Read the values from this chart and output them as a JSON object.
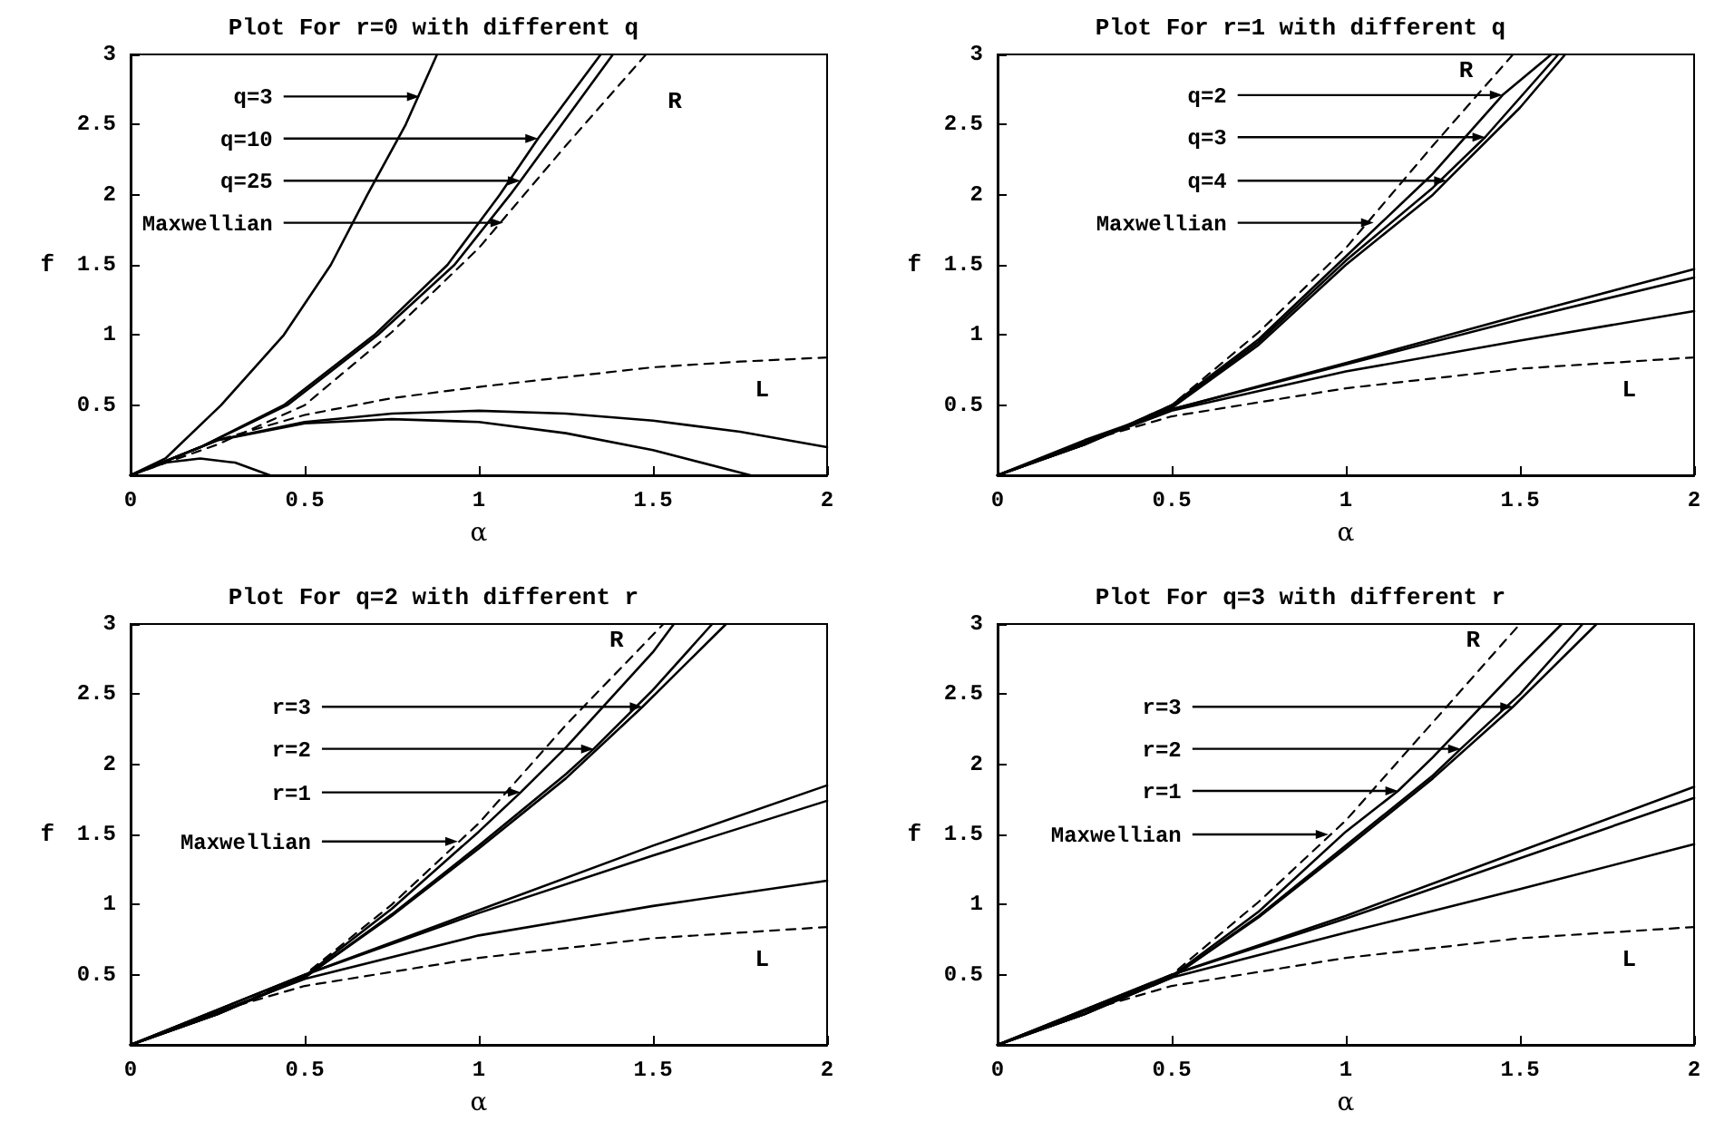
{
  "chart_data": [
    {
      "type": "line",
      "title": "Plot For r=0 with different q",
      "xlabel": "α",
      "ylabel": "f",
      "xlim": [
        0,
        2
      ],
      "xticks": [
        0,
        0.5,
        1,
        1.5,
        2
      ],
      "ylim": [
        0,
        3
      ],
      "yticks": [
        0.5,
        1,
        1.5,
        2,
        2.5,
        3
      ],
      "grid": false,
      "legend": false,
      "marker": "none",
      "line_style": "solid",
      "annotations": [
        {
          "text": "q=3",
          "x": 0.83,
          "y": 2.7
        },
        {
          "text": "q=10",
          "x": 1.17,
          "y": 2.4
        },
        {
          "text": "q=25",
          "x": 1.12,
          "y": 2.1
        },
        {
          "text": "Maxwellian",
          "x": 1.07,
          "y": 1.8
        }
      ],
      "series": [
        {
          "color": "#000000",
          "x": [
            0,
            0.1,
            0.26,
            0.44,
            0.575,
            0.68,
            0.79,
            0.88
          ],
          "values": [
            0,
            0.12,
            0.5,
            1,
            1.5,
            2,
            2.5,
            3
          ]
        },
        {
          "color": "#000000",
          "x": [
            0,
            0.2,
            0.44,
            0.7,
            0.91,
            1.06,
            1.17,
            1.35
          ],
          "values": [
            0,
            0.2,
            0.5,
            1,
            1.5,
            2,
            2.4,
            3
          ]
        },
        {
          "color": "#000000",
          "x": [
            0,
            0.2,
            0.45,
            0.71,
            0.93,
            1.09,
            1.12,
            1.385
          ],
          "values": [
            0,
            0.2,
            0.5,
            1,
            1.5,
            2,
            2.1,
            3
          ]
        },
        {
          "name": "R",
          "color": "#000000",
          "line_style": "dashed",
          "x": [
            0,
            0.25,
            0.5,
            0.75,
            1,
            1.25,
            1.48
          ],
          "values": [
            0,
            0.22,
            0.5,
            1.02,
            1.62,
            2.35,
            3
          ]
        },
        {
          "name": "L",
          "color": "#000000",
          "line_style": "dashed",
          "x": [
            0,
            0.25,
            0.5,
            0.75,
            1,
            1.25,
            1.5,
            1.75,
            2
          ],
          "values": [
            0,
            0.25,
            0.43,
            0.55,
            0.63,
            0.7,
            0.77,
            0.81,
            0.84
          ]
        },
        {
          "color": "#000000",
          "x": [
            0,
            0.25,
            0.5,
            0.75,
            1,
            1.25,
            1.5,
            1.75,
            2
          ],
          "values": [
            0,
            0.25,
            0.38,
            0.44,
            0.46,
            0.44,
            0.39,
            0.31,
            0.2
          ]
        },
        {
          "color": "#000000",
          "x": [
            0,
            0.25,
            0.5,
            0.75,
            1,
            1.25,
            1.5,
            1.78
          ],
          "values": [
            0,
            0.25,
            0.37,
            0.4,
            0.38,
            0.3,
            0.18,
            0
          ]
        },
        {
          "color": "#000000",
          "x": [
            0,
            0.1,
            0.2,
            0.3,
            0.4
          ],
          "values": [
            0,
            0.09,
            0.12,
            0.09,
            0
          ]
        }
      ]
    },
    {
      "type": "line",
      "title": "Plot For r=1 with different q",
      "xlabel": "α",
      "ylabel": "f",
      "xlim": [
        0,
        2
      ],
      "xticks": [
        0,
        0.5,
        1,
        1.5,
        2
      ],
      "ylim": [
        0,
        3
      ],
      "yticks": [
        0.5,
        1,
        1.5,
        2,
        2.5,
        3
      ],
      "grid": false,
      "legend": false,
      "marker": "none",
      "line_style": "solid",
      "annotations": [
        {
          "text": "q=2",
          "x": 1.45,
          "y": 2.71
        },
        {
          "text": "q=3",
          "x": 1.4,
          "y": 2.41
        },
        {
          "text": "q=4",
          "x": 1.29,
          "y": 2.1
        },
        {
          "text": "Maxwellian",
          "x": 1.08,
          "y": 1.8
        }
      ],
      "series": [
        {
          "color": "#000000",
          "x": [
            0,
            0.25,
            0.5,
            0.75,
            1,
            1.25,
            1.45,
            1.59
          ],
          "values": [
            0,
            0.22,
            0.5,
            0.97,
            1.56,
            2.15,
            2.71,
            3
          ]
        },
        {
          "color": "#000000",
          "x": [
            0,
            0.25,
            0.5,
            0.75,
            1,
            1.25,
            1.4,
            1.61
          ],
          "values": [
            0,
            0.22,
            0.49,
            0.95,
            1.53,
            2.05,
            2.41,
            3
          ]
        },
        {
          "color": "#000000",
          "x": [
            0,
            0.25,
            0.5,
            0.75,
            1,
            1.25,
            1.29,
            1.5,
            1.63
          ],
          "values": [
            0,
            0.22,
            0.48,
            0.93,
            1.5,
            2,
            2.1,
            2.62,
            3
          ]
        },
        {
          "name": "R",
          "color": "#000000",
          "line_style": "dashed",
          "x": [
            0,
            0.25,
            0.5,
            0.75,
            1,
            1.25,
            1.48
          ],
          "values": [
            0,
            0.22,
            0.5,
            1.02,
            1.62,
            2.35,
            3
          ]
        },
        {
          "name": "L",
          "color": "#000000",
          "line_style": "dashed",
          "x": [
            0,
            0.25,
            0.5,
            1,
            1.5,
            2
          ],
          "values": [
            0,
            0.24,
            0.42,
            0.62,
            0.76,
            0.84
          ]
        },
        {
          "color": "#000000",
          "x": [
            0,
            0.5,
            1,
            1.5,
            2
          ],
          "values": [
            0,
            0.46,
            0.74,
            0.96,
            1.17
          ]
        },
        {
          "color": "#000000",
          "x": [
            0,
            0.5,
            1,
            1.5,
            2
          ],
          "values": [
            0,
            0.47,
            0.79,
            1.11,
            1.41
          ]
        },
        {
          "color": "#000000",
          "x": [
            0,
            0.25,
            0.5,
            1,
            1.5,
            2
          ],
          "values": [
            0,
            0.25,
            0.47,
            0.8,
            1.14,
            1.47
          ]
        }
      ]
    },
    {
      "type": "line",
      "title": "Plot For q=2 with different r",
      "xlabel": "α",
      "ylabel": "f",
      "xlim": [
        0,
        2
      ],
      "xticks": [
        0,
        0.5,
        1,
        1.5,
        2
      ],
      "ylim": [
        0,
        3
      ],
      "yticks": [
        0.5,
        1,
        1.5,
        2,
        2.5,
        3
      ],
      "grid": false,
      "legend": false,
      "marker": "none",
      "line_style": "solid",
      "annotations": [
        {
          "text": "r=3",
          "x": 1.47,
          "y": 2.41
        },
        {
          "text": "r=2",
          "x": 1.33,
          "y": 2.11
        },
        {
          "text": "r=1",
          "x": 1.12,
          "y": 1.8
        },
        {
          "text": "Maxwellian",
          "x": 0.94,
          "y": 1.45
        }
      ],
      "series": [
        {
          "color": "#000000",
          "x": [
            0,
            0.25,
            0.5,
            0.75,
            1,
            1.25,
            1.47,
            1.71
          ],
          "values": [
            0,
            0.22,
            0.48,
            0.92,
            1.4,
            1.9,
            2.41,
            3
          ]
        },
        {
          "color": "#000000",
          "x": [
            0,
            0.25,
            0.5,
            0.75,
            1,
            1.25,
            1.33,
            1.5,
            1.67
          ],
          "values": [
            0,
            0.22,
            0.48,
            0.93,
            1.42,
            1.93,
            2.11,
            2.53,
            3
          ]
        },
        {
          "color": "#000000",
          "x": [
            0,
            0.25,
            0.5,
            0.75,
            1,
            1.12,
            1.25,
            1.5,
            1.56
          ],
          "values": [
            0,
            0.22,
            0.49,
            0.97,
            1.52,
            1.8,
            2.12,
            2.8,
            3
          ]
        },
        {
          "name": "R",
          "color": "#000000",
          "line_style": "dashed",
          "x": [
            0,
            0.25,
            0.5,
            0.75,
            1,
            1.25,
            1.53
          ],
          "values": [
            0,
            0.22,
            0.5,
            1,
            1.58,
            2.28,
            3
          ]
        },
        {
          "name": "L",
          "color": "#000000",
          "line_style": "dashed",
          "x": [
            0,
            0.25,
            0.5,
            1,
            1.5,
            2
          ],
          "values": [
            0,
            0.24,
            0.42,
            0.62,
            0.76,
            0.84
          ]
        },
        {
          "color": "#000000",
          "x": [
            0,
            0.5,
            1,
            1.5,
            2
          ],
          "values": [
            0,
            0.5,
            0.96,
            1.42,
            1.85
          ]
        },
        {
          "color": "#000000",
          "x": [
            0,
            0.5,
            1,
            1.5,
            2
          ],
          "values": [
            0,
            0.5,
            0.94,
            1.35,
            1.74
          ]
        },
        {
          "color": "#000000",
          "x": [
            0,
            0.5,
            1,
            1.5,
            2
          ],
          "values": [
            0,
            0.47,
            0.78,
            0.99,
            1.17
          ]
        }
      ]
    },
    {
      "type": "line",
      "title": "Plot For q=3 with different r",
      "xlabel": "α",
      "ylabel": "f",
      "xlim": [
        0,
        2
      ],
      "xticks": [
        0,
        0.5,
        1,
        1.5,
        2
      ],
      "ylim": [
        0,
        3
      ],
      "yticks": [
        0.5,
        1,
        1.5,
        2,
        2.5,
        3
      ],
      "grid": false,
      "legend": false,
      "marker": "none",
      "line_style": "solid",
      "annotations": [
        {
          "text": "r=3",
          "x": 1.48,
          "y": 2.41
        },
        {
          "text": "r=2",
          "x": 1.33,
          "y": 2.11
        },
        {
          "text": "r=1",
          "x": 1.15,
          "y": 1.81
        },
        {
          "text": "Maxwellian",
          "x": 0.95,
          "y": 1.5
        }
      ],
      "series": [
        {
          "color": "#000000",
          "x": [
            0,
            0.25,
            0.5,
            0.75,
            1,
            1.25,
            1.48,
            1.72
          ],
          "values": [
            0,
            0.22,
            0.48,
            0.91,
            1.4,
            1.9,
            2.41,
            3
          ]
        },
        {
          "color": "#000000",
          "x": [
            0,
            0.25,
            0.5,
            0.75,
            1,
            1.25,
            1.33,
            1.5,
            1.68
          ],
          "values": [
            0,
            0.22,
            0.48,
            0.92,
            1.42,
            1.92,
            2.11,
            2.5,
            3
          ]
        },
        {
          "color": "#000000",
          "x": [
            0,
            0.25,
            0.5,
            0.75,
            1,
            1.15,
            1.25,
            1.5,
            1.62
          ],
          "values": [
            0,
            0.22,
            0.49,
            0.95,
            1.52,
            1.81,
            2.05,
            2.7,
            3
          ]
        },
        {
          "name": "R",
          "color": "#000000",
          "line_style": "dashed",
          "x": [
            0,
            0.25,
            0.5,
            0.75,
            1,
            1.25,
            1.5
          ],
          "values": [
            0,
            0.22,
            0.5,
            1.02,
            1.6,
            2.3,
            3
          ]
        },
        {
          "name": "L",
          "color": "#000000",
          "line_style": "dashed",
          "x": [
            0,
            0.25,
            0.5,
            1,
            1.5,
            2
          ],
          "values": [
            0,
            0.24,
            0.42,
            0.62,
            0.76,
            0.84
          ]
        },
        {
          "color": "#000000",
          "x": [
            0,
            0.5,
            1,
            1.5,
            2
          ],
          "values": [
            0,
            0.5,
            0.92,
            1.38,
            1.84
          ]
        },
        {
          "color": "#000000",
          "x": [
            0,
            0.5,
            1,
            1.5,
            2
          ],
          "values": [
            0,
            0.5,
            0.9,
            1.33,
            1.76
          ]
        },
        {
          "color": "#000000",
          "x": [
            0,
            0.5,
            1,
            1.5,
            2
          ],
          "values": [
            0,
            0.48,
            0.8,
            1.11,
            1.43
          ]
        }
      ]
    }
  ]
}
